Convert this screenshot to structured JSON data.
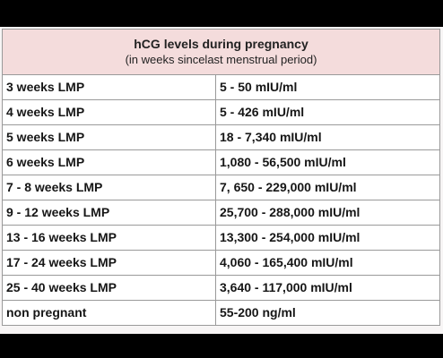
{
  "table": {
    "title": "hCG levels during pregnancy",
    "subtitle": "(in weeks sincelast menstrual period)",
    "rows": [
      {
        "period": "3 weeks LMP",
        "level": "5 - 50 mIU/ml"
      },
      {
        "period": "4 weeks LMP",
        "level": "5 - 426 mIU/ml"
      },
      {
        "period": "5 weeks LMP",
        "level": "18 - 7,340 mIU/ml"
      },
      {
        "period": "6 weeks LMP",
        "level": "1,080 - 56,500 mIU/ml"
      },
      {
        "period": "7 - 8 weeks LMP",
        "level": "7, 650 - 229,000 mIU/ml"
      },
      {
        "period": "9 - 12 weeks LMP",
        "level": "25,700 - 288,000 mIU/ml"
      },
      {
        "period": "13 - 16 weeks LMP",
        "level": "13,300 - 254,000 mIU/ml"
      },
      {
        "period": "17 - 24 weeks LMP",
        "level": "4,060 - 165,400 mIU/ml"
      },
      {
        "period": "25 - 40 weeks LMP",
        "level": "3,640 - 117,000 mIU/ml"
      },
      {
        "period": "non pregnant",
        "level": "55-200 ng/ml"
      }
    ]
  },
  "colors": {
    "header_background": "#f4dcdc",
    "cell_background": "#ffffff",
    "border": "#9a9a9a",
    "letterbox": "#000000"
  }
}
